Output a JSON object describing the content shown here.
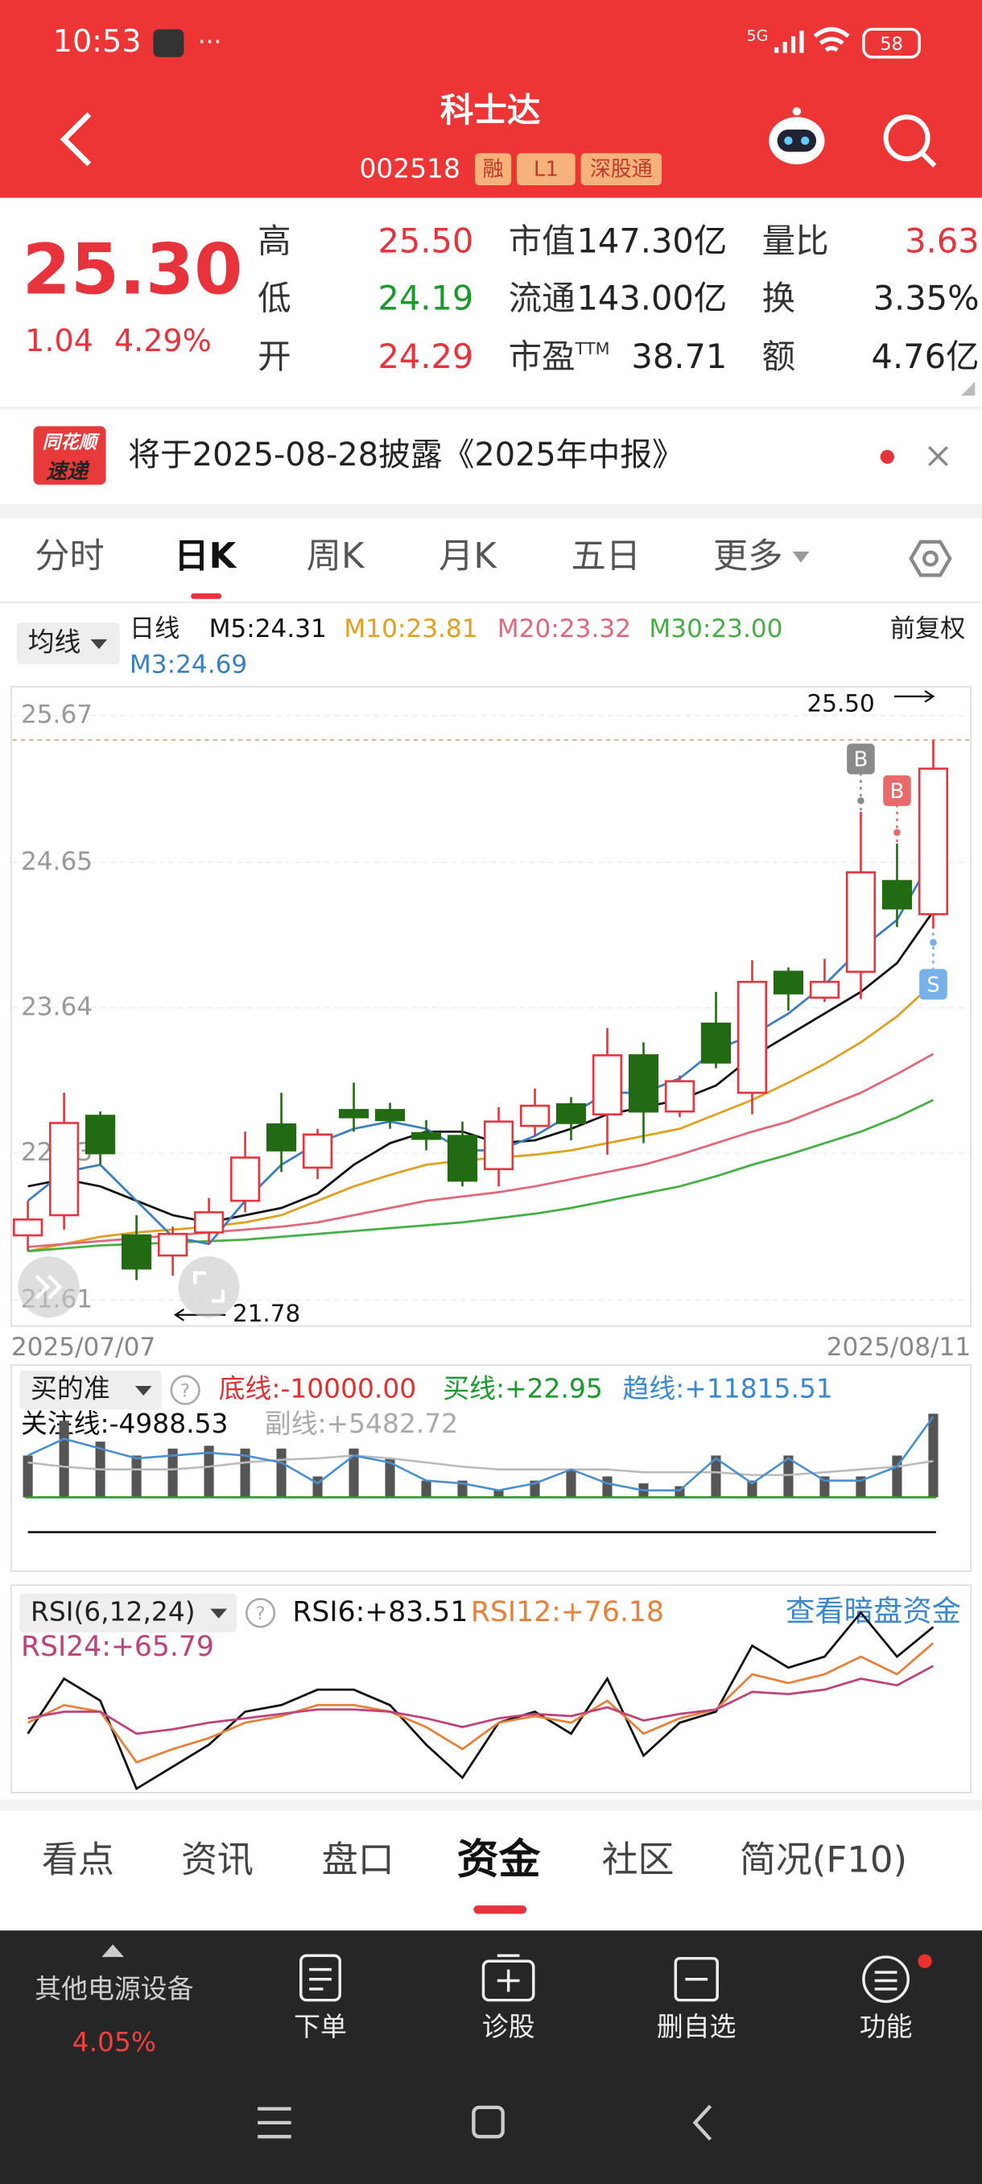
{
  "status_bar": {
    "time": "10:53",
    "network": "5G",
    "battery": "58"
  },
  "header": {
    "title": "科士达",
    "code": "002518",
    "tags": [
      "融",
      "L1",
      "深股通"
    ]
  },
  "quote": {
    "price": "25.30",
    "change": "1.04",
    "change_pct": "4.29%",
    "stats": [
      [
        {
          "label": "高",
          "value": "25.50",
          "color": "#e8323c"
        },
        {
          "label": "低",
          "value": "24.19",
          "color": "#1a9a2a"
        },
        {
          "label": "开",
          "value": "24.29",
          "color": "#e8323c"
        }
      ],
      [
        {
          "label": "市值",
          "value": "147.30亿",
          "color": "#222"
        },
        {
          "label": "流通",
          "value": "143.00亿",
          "color": "#222"
        },
        {
          "label": "市盈",
          "sup": "TTM",
          "value": "38.71",
          "color": "#222"
        }
      ],
      [
        {
          "label": "量比",
          "value": "3.63",
          "color": "#e8323c"
        },
        {
          "label": "换",
          "value": "3.35%",
          "color": "#222"
        },
        {
          "label": "额",
          "value": "4.76亿",
          "color": "#222"
        }
      ]
    ]
  },
  "notice": {
    "badge": [
      "同花顺",
      "速递"
    ],
    "text": "将于2025-08-28披露《2025年中报》"
  },
  "tabs": {
    "items": [
      "分时",
      "日K",
      "周K",
      "月K",
      "五日",
      "更多"
    ],
    "active": 1
  },
  "kline": {
    "type": "candlestick",
    "ma_selector": "均线",
    "period": "日线",
    "adjust": "前复权",
    "categories": [
      "2025/07/07",
      null,
      null,
      null,
      null,
      null,
      null,
      null,
      null,
      null,
      null,
      null,
      null,
      null,
      null,
      null,
      null,
      null,
      null,
      null,
      null,
      null,
      null,
      null,
      null,
      "2025/08/11"
    ],
    "open": [
      22.06,
      22.2,
      22.89,
      22.06,
      21.92,
      22.08,
      22.3,
      22.83,
      22.53,
      22.93,
      22.93,
      22.77,
      22.75,
      22.52,
      22.82,
      22.97,
      22.9,
      23.31,
      22.92,
      23.53,
      23.05,
      23.89,
      23.71,
      23.89,
      24.52,
      24.29
    ],
    "close": [
      22.17,
      22.84,
      22.63,
      21.83,
      22.07,
      22.22,
      22.6,
      22.65,
      22.76,
      22.88,
      22.86,
      22.73,
      22.44,
      22.85,
      22.96,
      22.84,
      23.31,
      22.92,
      23.13,
      23.26,
      23.82,
      23.74,
      23.82,
      24.58,
      24.33,
      25.3
    ],
    "high": [
      22.3,
      23.05,
      22.92,
      22.2,
      22.12,
      22.32,
      22.78,
      23.05,
      22.8,
      23.12,
      22.98,
      22.86,
      22.85,
      22.95,
      23.08,
      23.02,
      23.5,
      23.4,
      23.17,
      23.75,
      23.97,
      23.92,
      23.98,
      25.0,
      24.78,
      25.5
    ],
    "low": [
      21.95,
      22.1,
      22.55,
      21.75,
      21.78,
      22.0,
      22.22,
      22.5,
      22.45,
      22.78,
      22.8,
      22.65,
      22.4,
      22.4,
      22.75,
      22.72,
      22.62,
      22.7,
      22.88,
      23.22,
      22.9,
      23.62,
      23.68,
      23.7,
      24.2,
      24.19
    ],
    "ylim": [
      21.45,
      25.85
    ],
    "yticks": [
      25.67,
      24.65,
      23.64,
      22.63,
      21.61
    ],
    "up_color": "#e8323c",
    "down_color": "#236b12",
    "max_label": {
      "value": 25.5,
      "label": "25.50"
    },
    "min_label": {
      "value": 21.78,
      "label": "21.78"
    },
    "signals": [
      null,
      null,
      null,
      null,
      null,
      null,
      null,
      null,
      null,
      null,
      null,
      null,
      null,
      null,
      null,
      null,
      null,
      null,
      null,
      null,
      null,
      null,
      null,
      {
        "label": "B",
        "color": "#8a8a8a"
      },
      {
        "label": "B",
        "color": "#e86a6a"
      },
      {
        "label": "S",
        "color": "#78b0e8"
      }
    ],
    "ma_series": [
      {
        "name": "M5:24.31",
        "color": "#111111",
        "values": [
          22.4,
          22.45,
          22.4,
          22.3,
          22.2,
          22.15,
          22.2,
          22.25,
          22.35,
          22.55,
          22.7,
          22.78,
          22.78,
          22.7,
          22.72,
          22.8,
          22.9,
          22.95,
          23.0,
          23.1,
          23.3,
          23.45,
          23.6,
          23.75,
          23.95,
          24.31
        ]
      },
      {
        "name": "M10:23.81",
        "color": "#e0a020",
        "values": [
          21.95,
          22.0,
          22.05,
          22.08,
          22.1,
          22.12,
          22.15,
          22.2,
          22.3,
          22.4,
          22.48,
          22.55,
          22.58,
          22.6,
          22.62,
          22.65,
          22.7,
          22.75,
          22.8,
          22.9,
          23.0,
          23.12,
          23.25,
          23.4,
          23.58,
          23.81
        ]
      },
      {
        "name": "M20:23.32",
        "color": "#e06878",
        "values": [
          21.98,
          22.0,
          22.02,
          22.04,
          22.06,
          22.08,
          22.1,
          22.12,
          22.15,
          22.2,
          22.25,
          22.3,
          22.33,
          22.36,
          22.4,
          22.45,
          22.5,
          22.55,
          22.62,
          22.7,
          22.78,
          22.85,
          22.95,
          23.05,
          23.18,
          23.32
        ]
      },
      {
        "name": "M30:23.00",
        "color": "#44b044",
        "values": [
          21.95,
          21.97,
          21.99,
          22.0,
          22.01,
          22.02,
          22.03,
          22.05,
          22.07,
          22.09,
          22.11,
          22.13,
          22.15,
          22.18,
          22.21,
          22.25,
          22.3,
          22.35,
          22.4,
          22.47,
          22.55,
          22.62,
          22.7,
          22.78,
          22.88,
          23.0
        ]
      },
      {
        "name": "M3:24.69",
        "color": "#3a80c0",
        "values": [
          22.3,
          22.5,
          22.55,
          22.3,
          22.05,
          22.0,
          22.3,
          22.55,
          22.7,
          22.8,
          22.85,
          22.8,
          22.65,
          22.65,
          22.75,
          22.9,
          23.05,
          23.05,
          23.15,
          23.35,
          23.45,
          23.6,
          23.8,
          24.05,
          24.25,
          24.69
        ]
      }
    ]
  },
  "indicator": {
    "selector": "买的准",
    "legend": [
      {
        "text": "底线:-10000.00",
        "color": "#e03030"
      },
      {
        "text": "买线:+22.95",
        "color": "#1a9a2a"
      },
      {
        "text": "趋线:+11815.51",
        "color": "#3a88d0"
      },
      {
        "text": "关注线:-4988.53",
        "color": "#111111"
      },
      {
        "text": "副线:+5482.72",
        "color": "#aaaaaa"
      }
    ],
    "ylim": [
      0,
      62
    ],
    "bars": [
      30,
      55,
      40,
      30,
      35,
      37,
      35,
      35,
      15,
      35,
      28,
      12,
      12,
      5,
      12,
      20,
      15,
      10,
      8,
      30,
      12,
      30,
      15,
      15,
      30,
      60
    ],
    "lines": [
      {
        "color": "#bbbbbb",
        "values": [
          25,
          22,
          20,
          20,
          20,
          22,
          25,
          27,
          28,
          30,
          28,
          25,
          22,
          20,
          20,
          20,
          20,
          18,
          18,
          18,
          16,
          16,
          18,
          20,
          22,
          26
        ]
      },
      {
        "color": "#4a90d0",
        "values": [
          30,
          42,
          35,
          28,
          30,
          32,
          30,
          25,
          10,
          30,
          25,
          12,
          10,
          5,
          10,
          20,
          10,
          5,
          5,
          28,
          10,
          28,
          12,
          12,
          22,
          58
        ]
      }
    ]
  },
  "rsi": {
    "selector": "RSI(6,12,24)",
    "link": "查看暗盘资金",
    "ylim": [
      0,
      100
    ],
    "series": [
      {
        "name": "RSI6:+83.51",
        "color": "#111111",
        "values": [
          35,
          60,
          50,
          10,
          20,
          30,
          45,
          48,
          55,
          55,
          48,
          30,
          15,
          40,
          45,
          35,
          60,
          25,
          40,
          45,
          75,
          65,
          70,
          90,
          70,
          83.51
        ]
      },
      {
        "name": "RSI12:+76.18",
        "color": "#e8803a",
        "values": [
          40,
          48,
          45,
          22,
          28,
          33,
          40,
          43,
          48,
          48,
          45,
          38,
          28,
          40,
          43,
          40,
          50,
          35,
          42,
          46,
          62,
          58,
          62,
          70,
          62,
          76.18
        ]
      },
      {
        "name": "RSI24:+65.79",
        "color": "#c0407a",
        "values": [
          42,
          45,
          45,
          35,
          37,
          40,
          42,
          44,
          46,
          46,
          45,
          42,
          38,
          42,
          44,
          43,
          47,
          41,
          44,
          46,
          54,
          53,
          55,
          60,
          57,
          65.79
        ]
      }
    ]
  },
  "bottom_tabs": {
    "items": [
      "看点",
      "资讯",
      "盘口",
      "资金",
      "社区",
      "简况(F10)"
    ],
    "active": 3
  },
  "footer": {
    "sector": "其他电源设备",
    "sector_change": "4.05%",
    "actions": [
      "下单",
      "诊股",
      "删自选",
      "功能"
    ]
  }
}
